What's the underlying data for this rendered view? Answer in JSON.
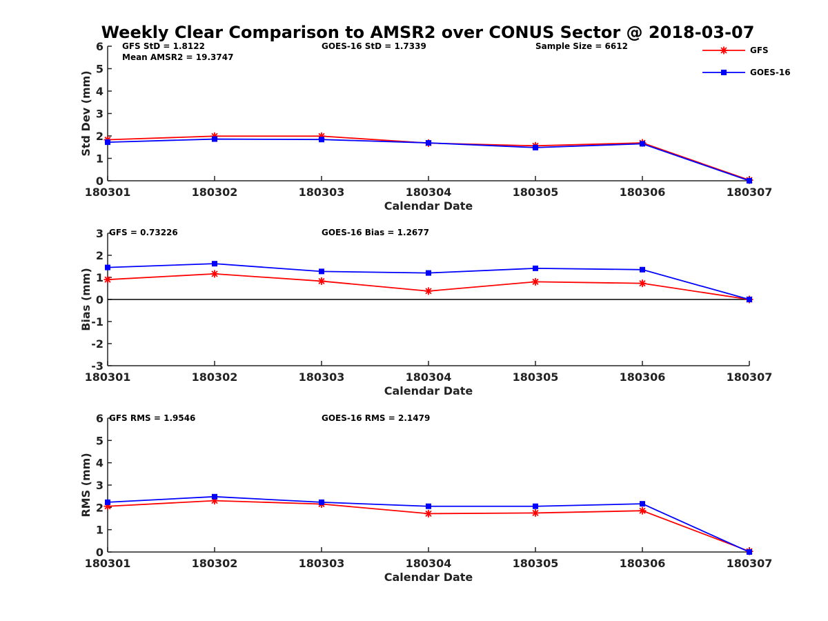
{
  "chart_data": {
    "title": "Weekly Clear Comparison to AMSR2 over CONUS Sector @ 2018-03-07",
    "type": "line",
    "categories": [
      "180301",
      "180302",
      "180303",
      "180304",
      "180305",
      "180306",
      "180307"
    ],
    "legend": {
      "placement": "top-right",
      "entries": [
        {
          "name": "GFS",
          "color": "#ff0000",
          "marker": "asterisk"
        },
        {
          "name": "GOES-16",
          "color": "#0000ff",
          "marker": "square"
        }
      ]
    },
    "panels": [
      {
        "id": "std",
        "ylabel": "Std Dev (mm)",
        "xlabel": "Calendar Date",
        "ylim": [
          0,
          6
        ],
        "yticks": [
          "0",
          "1",
          "2",
          "3",
          "4",
          "5",
          "6"
        ],
        "zero_line": false,
        "annotations": [
          "GFS StD = 1.8122",
          "Mean AMSR2 = 19.3747",
          "GOES-16 StD = 1.7339",
          "Sample Size = 6612"
        ],
        "series": [
          {
            "name": "GFS",
            "values": [
              1.83,
              1.99,
              1.99,
              1.68,
              1.56,
              1.69,
              0.03
            ]
          },
          {
            "name": "GOES-16",
            "values": [
              1.72,
              1.86,
              1.84,
              1.69,
              1.48,
              1.65,
              0.0
            ]
          }
        ]
      },
      {
        "id": "bias",
        "ylabel": "Bias (mm)",
        "xlabel": "Calendar Date",
        "ylim": [
          -3,
          3
        ],
        "yticks": [
          "-3",
          "-2",
          "-1",
          "0",
          "1",
          "2",
          "3"
        ],
        "zero_line": true,
        "annotations": [
          "GFS = 0.73226",
          "GOES-16 Bias  = 1.2677"
        ],
        "series": [
          {
            "name": "GFS",
            "values": [
              0.9,
              1.16,
              0.83,
              0.38,
              0.8,
              0.73,
              0.0
            ]
          },
          {
            "name": "GOES-16",
            "values": [
              1.45,
              1.62,
              1.27,
              1.2,
              1.41,
              1.35,
              0.0
            ]
          }
        ]
      },
      {
        "id": "rms",
        "ylabel": "RMS (mm)",
        "xlabel": "Calendar Date",
        "ylim": [
          0,
          6
        ],
        "yticks": [
          "0",
          "1",
          "2",
          "3",
          "4",
          "5",
          "6"
        ],
        "zero_line": false,
        "annotations": [
          "GFS RMS = 1.9546",
          "GOES-16 RMS = 2.1479"
        ],
        "series": [
          {
            "name": "GFS",
            "values": [
              2.05,
              2.3,
              2.15,
              1.72,
              1.75,
              1.85,
              0.03
            ]
          },
          {
            "name": "GOES-16",
            "values": [
              2.23,
              2.48,
              2.23,
              2.05,
              2.05,
              2.16,
              0.0
            ]
          }
        ]
      }
    ]
  }
}
